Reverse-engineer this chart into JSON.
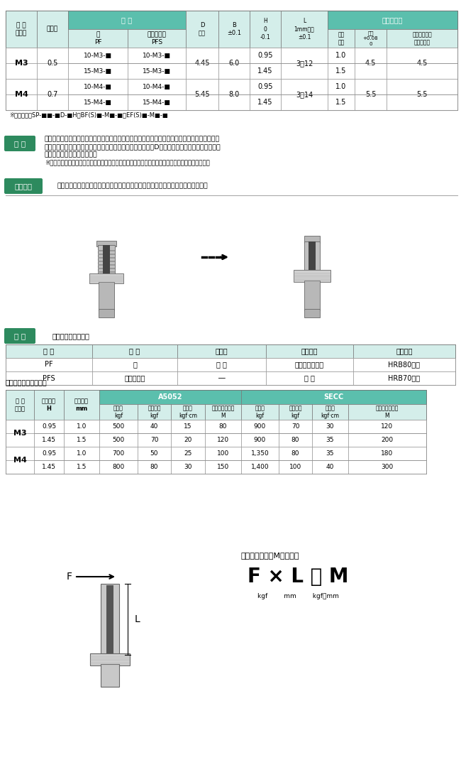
{
  "bg_color": "#ffffff",
  "teal_header": "#5bbfad",
  "teal_light": "#d4eeea",
  "green_badge": "#2d8a5e",
  "table1_note": "※同等品番　SP-■■-■D-■H　BF(S)■-M■-■　EF(S)■-M■-■",
  "feature_lines": [
    "プレスされたローレットが板をテーハ部に押し流し、スペーサーが抜けなくなり、ローレットは",
    "ネジ挙入時回転防止の役目となります。他社相似品に比べ、D寸法部がバイロットの役目となり",
    "板に倒れずに圧入できます。",
    "※どの位の力に耕えられるかは、それぞれ材質別耕押板力、トルクのデーターを参考にして下さい。"
  ],
  "install_text": "各サイズ別穴径で金属に穴をあけ、ローレットが完全に圧入する辺プレスします。",
  "perf_subtitle": "材質と取付板金条件",
  "perf_headers": [
    "型 式",
    "材 質",
    "熱処理",
    "表面処理",
    "板金硬度"
  ],
  "perf_rows": [
    [
      "PF",
      "鉄",
      "浸 炭",
      "ニッケルメッキ",
      "HRB80以下"
    ],
    [
      "PFS",
      "ステンレス",
      "―",
      "脱 脂",
      "HRB70以下"
    ]
  ],
  "strength_title": "取付条件及び保持強さ",
  "strength_rows": [
    [
      "M3",
      "0.95",
      "1.0",
      "500",
      "40",
      "15",
      "80",
      "900",
      "70",
      "30",
      "120"
    ],
    [
      "",
      "1.45",
      "1.5",
      "500",
      "70",
      "20",
      "120",
      "900",
      "80",
      "35",
      "200"
    ],
    [
      "M4",
      "0.95",
      "1.0",
      "700",
      "50",
      "25",
      "100",
      "1,350",
      "80",
      "35",
      "180"
    ],
    [
      "",
      "1.45",
      "1.5",
      "800",
      "80",
      "30",
      "150",
      "1,400",
      "100",
      "40",
      "300"
    ]
  ],
  "formula_text": "倒れモーメントMの計算式",
  "formula": "F × L ＝ M",
  "formula_sub": "kgf        mm        kgf・mm"
}
